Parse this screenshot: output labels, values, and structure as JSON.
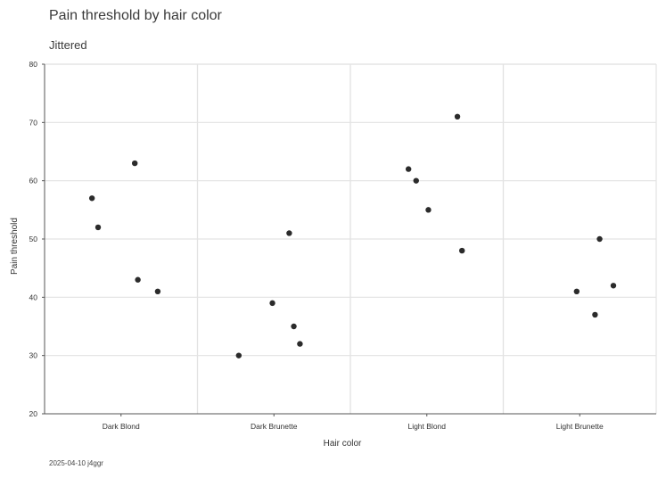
{
  "chart_data": {
    "type": "scatter",
    "title": "Pain threshold by hair color",
    "subtitle": "Jittered",
    "caption": "2025-04-10 j4ggr",
    "xlabel": "Hair color",
    "ylabel": "Pain threshold",
    "categories": [
      "Dark Blond",
      "Dark Brunette",
      "Light Blond",
      "Light Brunette"
    ],
    "ylim": [
      20,
      80
    ],
    "yticks": [
      20,
      30,
      40,
      50,
      60,
      70,
      80
    ],
    "grid": true,
    "point_color": "#2b2b2b",
    "points": [
      {
        "category": "Dark Blond",
        "jitter": -0.19,
        "y": 57
      },
      {
        "category": "Dark Blond",
        "jitter": -0.15,
        "y": 52
      },
      {
        "category": "Dark Blond",
        "jitter": 0.09,
        "y": 63
      },
      {
        "category": "Dark Blond",
        "jitter": 0.11,
        "y": 43
      },
      {
        "category": "Dark Blond",
        "jitter": 0.24,
        "y": 41
      },
      {
        "category": "Dark Brunette",
        "jitter": -0.23,
        "y": 30
      },
      {
        "category": "Dark Brunette",
        "jitter": -0.01,
        "y": 39
      },
      {
        "category": "Dark Brunette",
        "jitter": 0.1,
        "y": 51
      },
      {
        "category": "Dark Brunette",
        "jitter": 0.13,
        "y": 35
      },
      {
        "category": "Dark Brunette",
        "jitter": 0.17,
        "y": 32
      },
      {
        "category": "Light Blond",
        "jitter": -0.12,
        "y": 62
      },
      {
        "category": "Light Blond",
        "jitter": -0.07,
        "y": 60
      },
      {
        "category": "Light Blond",
        "jitter": 0.01,
        "y": 55
      },
      {
        "category": "Light Blond",
        "jitter": 0.2,
        "y": 71
      },
      {
        "category": "Light Blond",
        "jitter": 0.23,
        "y": 48
      },
      {
        "category": "Light Brunette",
        "jitter": -0.02,
        "y": 41
      },
      {
        "category": "Light Brunette",
        "jitter": 0.1,
        "y": 37
      },
      {
        "category": "Light Brunette",
        "jitter": 0.13,
        "y": 50
      },
      {
        "category": "Light Brunette",
        "jitter": 0.22,
        "y": 42
      }
    ]
  }
}
